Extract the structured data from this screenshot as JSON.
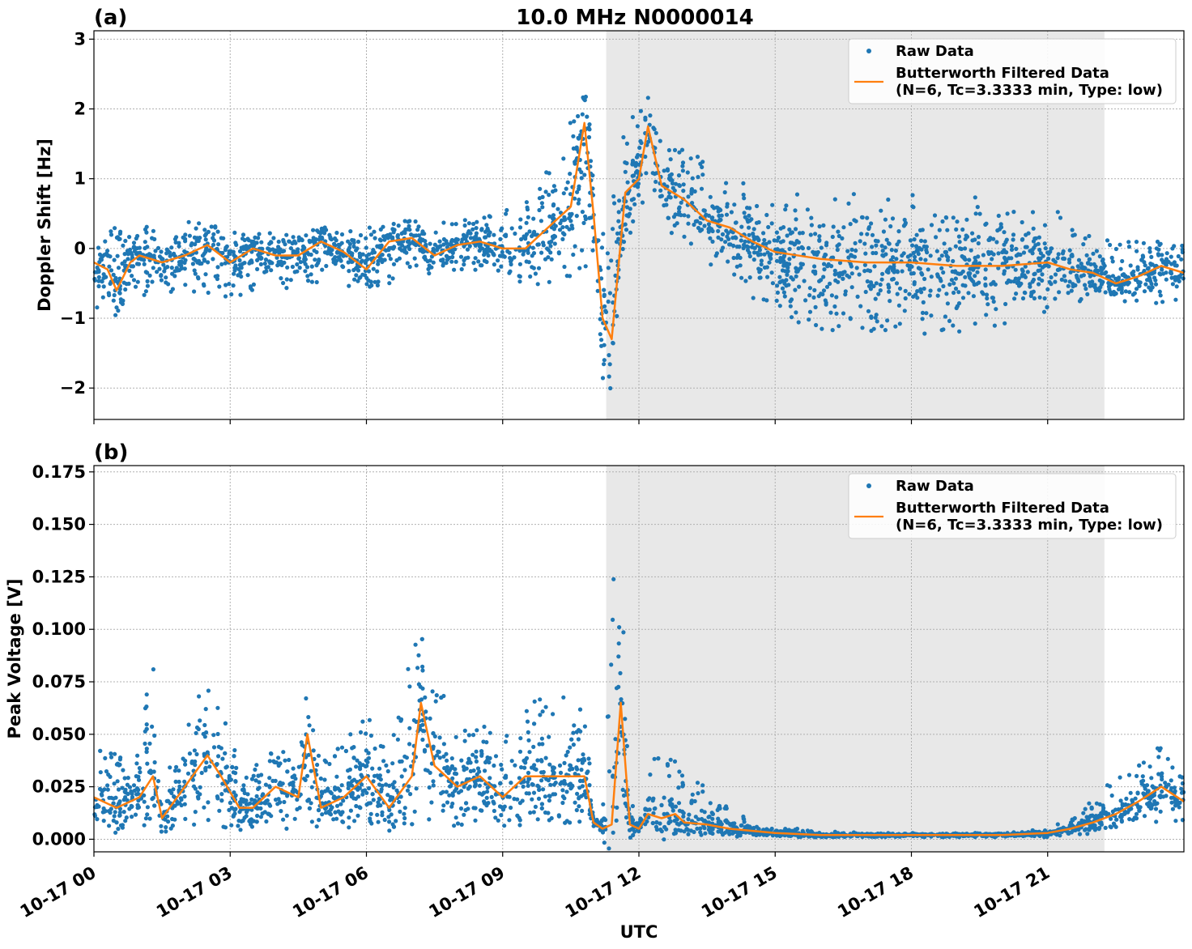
{
  "chart_data": [
    {
      "type": "scatter",
      "panel_label": "(a)",
      "title": "10.0 MHz N0000014",
      "ylabel": "Doppler Shift [Hz]",
      "xlabel": "",
      "x_unit": "hours UTC since 10-17 00",
      "xlim": [
        0,
        24
      ],
      "ylim": [
        -2.45,
        3.12
      ],
      "yticks": [
        {
          "value": 3,
          "label": "3"
        },
        {
          "value": 2,
          "label": "2"
        },
        {
          "value": 1,
          "label": "1"
        },
        {
          "value": 0,
          "label": "0"
        },
        {
          "value": -1,
          "label": "−1"
        },
        {
          "value": -2,
          "label": "−2"
        }
      ],
      "grid": true,
      "shaded_region": {
        "x_start": 11.28,
        "x_end": 22.25,
        "color": "#e8e8e8"
      },
      "legend": {
        "position": "top-right",
        "entries": [
          {
            "label": "Raw Data",
            "color": "#1f77b4",
            "style": "dot"
          },
          {
            "label": "Butterworth Filtered Data",
            "label2": "(N=6, Tc=3.3333 min, Type: low)",
            "color": "#ff7f0e",
            "style": "line"
          }
        ]
      },
      "series": [
        {
          "name": "Butterworth Filtered Data",
          "color": "#ff7f0e",
          "x": [
            0,
            0.3,
            0.5,
            0.8,
            1.0,
            1.5,
            2.0,
            2.5,
            3.0,
            3.5,
            4.0,
            4.5,
            5.0,
            5.5,
            6.0,
            6.5,
            7.0,
            7.5,
            8.0,
            8.5,
            9.0,
            9.5,
            10.0,
            10.5,
            10.8,
            11.0,
            11.2,
            11.4,
            11.7,
            12.0,
            12.2,
            12.5,
            13.0,
            13.5,
            14.0,
            14.5,
            15.0,
            16.0,
            17.0,
            18.0,
            19.0,
            20.0,
            21.0,
            21.5,
            22.0,
            22.5,
            23.0,
            23.5,
            24.0
          ],
          "y": [
            -0.2,
            -0.3,
            -0.6,
            -0.2,
            -0.1,
            -0.2,
            -0.1,
            0.05,
            -0.2,
            0.0,
            -0.1,
            -0.1,
            0.1,
            -0.05,
            -0.3,
            0.1,
            0.15,
            -0.1,
            0.05,
            0.1,
            0.0,
            0.0,
            0.3,
            0.6,
            1.8,
            0.5,
            -1.0,
            -1.3,
            0.8,
            1.0,
            1.75,
            0.9,
            0.7,
            0.4,
            0.3,
            0.1,
            -0.05,
            -0.15,
            -0.2,
            -0.2,
            -0.25,
            -0.25,
            -0.2,
            -0.3,
            -0.35,
            -0.5,
            -0.4,
            -0.25,
            -0.35
          ]
        }
      ],
      "raw_band": {
        "name": "Raw Data",
        "color": "#1f77b4",
        "x": [
          0,
          1,
          2,
          3,
          4,
          5,
          6,
          7,
          8,
          9,
          9.8,
          10.3,
          10.8,
          11.0,
          11.2,
          11.4,
          11.7,
          12.0,
          12.2,
          12.5,
          13.0,
          13.5,
          14.0,
          14.5,
          15.0,
          16.0,
          17.0,
          18.0,
          19.0,
          20.0,
          21.0,
          21.5,
          22.0,
          22.5,
          23.0,
          24.0
        ],
        "lower": [
          -1.0,
          -0.7,
          -0.6,
          -0.7,
          -0.6,
          -0.5,
          -0.6,
          -0.4,
          -0.3,
          -0.4,
          -0.6,
          -0.5,
          -0.3,
          -0.9,
          -1.9,
          -2.1,
          0.1,
          0.5,
          0.6,
          0.3,
          0.1,
          -0.2,
          -0.5,
          -0.8,
          -1.0,
          -1.2,
          -1.3,
          -1.3,
          -1.2,
          -1.1,
          -0.9,
          -0.8,
          -0.7,
          -0.7,
          -0.8,
          -0.8
        ],
        "upper": [
          0.3,
          0.3,
          0.4,
          0.3,
          0.2,
          0.3,
          0.3,
          0.4,
          0.4,
          0.6,
          1.0,
          1.3,
          2.7,
          1.5,
          0.3,
          0.8,
          2.0,
          2.0,
          2.2,
          1.6,
          1.5,
          1.2,
          1.0,
          0.9,
          0.8,
          0.8,
          0.8,
          0.8,
          0.8,
          0.7,
          0.6,
          0.5,
          0.2,
          0.1,
          0.1,
          0.1
        ]
      }
    },
    {
      "type": "scatter",
      "panel_label": "(b)",
      "title": "",
      "ylabel": "Peak Voltage [V]",
      "xlabel": "UTC",
      "x_unit": "hours UTC since 10-17 00",
      "xlim": [
        0,
        24
      ],
      "ylim": [
        -0.006,
        0.178
      ],
      "yticks": [
        {
          "value": 0.175,
          "label": "0.175"
        },
        {
          "value": 0.15,
          "label": "0.150"
        },
        {
          "value": 0.125,
          "label": "0.125"
        },
        {
          "value": 0.1,
          "label": "0.100"
        },
        {
          "value": 0.075,
          "label": "0.075"
        },
        {
          "value": 0.05,
          "label": "0.050"
        },
        {
          "value": 0.025,
          "label": "0.025"
        },
        {
          "value": 0.0,
          "label": "0.000"
        }
      ],
      "xticks": [
        {
          "value": 0,
          "label": "10-17 00"
        },
        {
          "value": 3,
          "label": "10-17 03"
        },
        {
          "value": 6,
          "label": "10-17 06"
        },
        {
          "value": 9,
          "label": "10-17 09"
        },
        {
          "value": 12,
          "label": "10-17 12"
        },
        {
          "value": 15,
          "label": "10-17 15"
        },
        {
          "value": 18,
          "label": "10-17 18"
        },
        {
          "value": 21,
          "label": "10-17 21"
        }
      ],
      "grid": true,
      "shaded_region": {
        "x_start": 11.28,
        "x_end": 22.25,
        "color": "#e8e8e8"
      },
      "legend": {
        "position": "top-right",
        "entries": [
          {
            "label": "Raw Data",
            "color": "#1f77b4",
            "style": "dot"
          },
          {
            "label": "Butterworth Filtered Data",
            "label2": "(N=6, Tc=3.3333 min, Type: low)",
            "color": "#ff7f0e",
            "style": "line"
          }
        ]
      },
      "series": [
        {
          "name": "Butterworth Filtered Data",
          "color": "#ff7f0e",
          "x": [
            0,
            0.5,
            1.0,
            1.3,
            1.5,
            2.0,
            2.5,
            2.8,
            3.2,
            3.5,
            4.0,
            4.5,
            4.7,
            5.0,
            5.5,
            6.0,
            6.5,
            7.0,
            7.2,
            7.5,
            8.0,
            8.5,
            9.0,
            9.5,
            10.0,
            10.5,
            10.8,
            11.0,
            11.2,
            11.4,
            11.6,
            11.8,
            12.0,
            12.2,
            12.5,
            12.8,
            13.0,
            13.5,
            14.0,
            14.5,
            15.0,
            16.0,
            17.0,
            18.0,
            19.0,
            20.0,
            21.0,
            21.5,
            22.0,
            22.5,
            23.0,
            23.5,
            24.0
          ],
          "y": [
            0.02,
            0.015,
            0.02,
            0.03,
            0.01,
            0.025,
            0.04,
            0.03,
            0.015,
            0.015,
            0.025,
            0.02,
            0.05,
            0.015,
            0.02,
            0.03,
            0.015,
            0.03,
            0.065,
            0.035,
            0.025,
            0.03,
            0.02,
            0.03,
            0.03,
            0.03,
            0.03,
            0.008,
            0.005,
            0.007,
            0.065,
            0.007,
            0.005,
            0.012,
            0.01,
            0.012,
            0.008,
            0.007,
            0.005,
            0.004,
            0.003,
            0.002,
            0.002,
            0.002,
            0.002,
            0.002,
            0.003,
            0.005,
            0.008,
            0.012,
            0.018,
            0.025,
            0.018
          ]
        }
      ],
      "raw_band": {
        "name": "Raw Data",
        "color": "#1f77b4",
        "x": [
          0,
          0.5,
          1.0,
          1.3,
          1.5,
          2.0,
          2.5,
          2.8,
          3.2,
          3.5,
          4.0,
          4.5,
          4.7,
          5.0,
          5.5,
          6.0,
          6.5,
          7.0,
          7.2,
          7.5,
          8.0,
          8.5,
          9.0,
          9.5,
          10.0,
          10.5,
          10.8,
          11.0,
          11.2,
          11.4,
          11.6,
          11.8,
          12.0,
          12.2,
          12.5,
          12.8,
          13.0,
          13.5,
          14.0,
          14.5,
          15.0,
          16.0,
          17.0,
          18.0,
          19.0,
          20.0,
          21.0,
          21.5,
          22.0,
          22.5,
          23.0,
          23.5,
          24.0
        ],
        "lower": [
          0.005,
          0.005,
          0.005,
          0.006,
          0.004,
          0.006,
          0.008,
          0.006,
          0.004,
          0.004,
          0.005,
          0.004,
          0.006,
          0.004,
          0.004,
          0.005,
          0.004,
          0.006,
          0.01,
          0.008,
          0.006,
          0.007,
          0.005,
          0.006,
          0.006,
          0.007,
          0.007,
          0.004,
          0.003,
          0.003,
          0.01,
          0.003,
          0.002,
          0.004,
          0.004,
          0.005,
          0.003,
          0.003,
          0.002,
          0.002,
          0.001,
          0.001,
          0.001,
          0.001,
          0.001,
          0.001,
          0.001,
          0.002,
          0.003,
          0.004,
          0.006,
          0.008,
          0.006
        ],
        "upper": [
          0.05,
          0.04,
          0.045,
          0.09,
          0.03,
          0.05,
          0.08,
          0.06,
          0.04,
          0.035,
          0.05,
          0.04,
          0.08,
          0.035,
          0.05,
          0.06,
          0.04,
          0.09,
          0.1,
          0.085,
          0.05,
          0.06,
          0.05,
          0.07,
          0.075,
          0.07,
          0.07,
          0.015,
          0.01,
          0.13,
          0.15,
          0.02,
          0.01,
          0.03,
          0.06,
          0.04,
          0.03,
          0.025,
          0.015,
          0.008,
          0.006,
          0.004,
          0.003,
          0.003,
          0.003,
          0.003,
          0.005,
          0.01,
          0.02,
          0.03,
          0.035,
          0.045,
          0.03
        ]
      }
    }
  ]
}
